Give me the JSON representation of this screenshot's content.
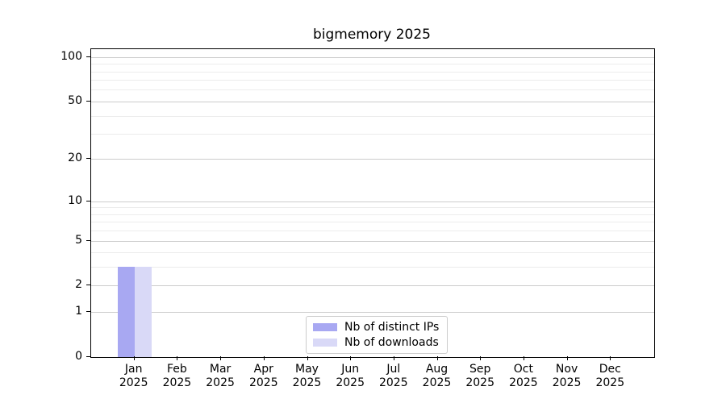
{
  "chart_data": {
    "type": "bar",
    "title": "bigmemory 2025",
    "categories": [
      "Jan",
      "Feb",
      "Mar",
      "Apr",
      "May",
      "Jun",
      "Jul",
      "Aug",
      "Sep",
      "Oct",
      "Nov",
      "Dec"
    ],
    "x_tick_year": "2025",
    "series": [
      {
        "name": "Nb of distinct IPs",
        "color": "#a8a8f2",
        "values": [
          3,
          0,
          0,
          0,
          0,
          0,
          0,
          0,
          0,
          0,
          0,
          0
        ]
      },
      {
        "name": "Nb of downloads",
        "color": "#d9d9f7",
        "values": [
          3,
          0,
          0,
          0,
          0,
          0,
          0,
          0,
          0,
          0,
          0,
          0
        ]
      }
    ],
    "ylabel": "",
    "xlabel": "",
    "y_axis": {
      "scale": "log10(1+x)",
      "major_ticks": [
        0,
        1,
        2,
        5,
        10,
        20,
        50,
        100
      ],
      "minor_gridlines": [
        3,
        4,
        6,
        7,
        8,
        9,
        30,
        40,
        60,
        70,
        80,
        90
      ],
      "ylim": [
        0,
        113
      ]
    },
    "grid": true,
    "legend_position": "lower center"
  },
  "colors": {
    "grid_major": "#cccccc",
    "grid_minor": "#ececec",
    "spine": "#000000",
    "background": "#ffffff"
  }
}
